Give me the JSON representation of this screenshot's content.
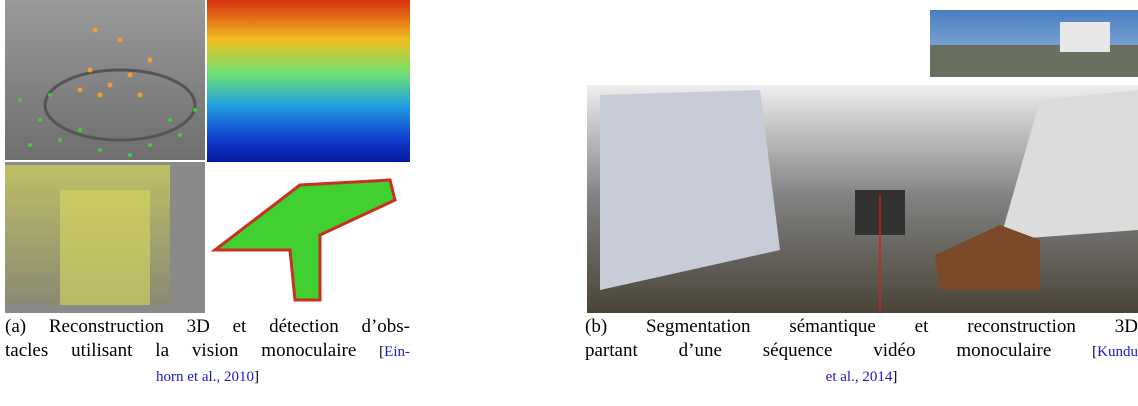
{
  "figure_a": {
    "line1": "(a) Reconstruction 3D et détection d’obs-",
    "line2": "tacles utilisant la vision monoculaire",
    "open": "[",
    "cite1": "Ein-",
    "cite2": "horn et al., 2010",
    "close": "]"
  },
  "figure_b": {
    "line1": "(b) Segmentation sémantique et reconstruction 3D",
    "line2": "partant d’une séquence vidéo monoculaire",
    "open": "[",
    "cite1": "Kundu",
    "cite2": "et al., 2014",
    "close": "]"
  }
}
